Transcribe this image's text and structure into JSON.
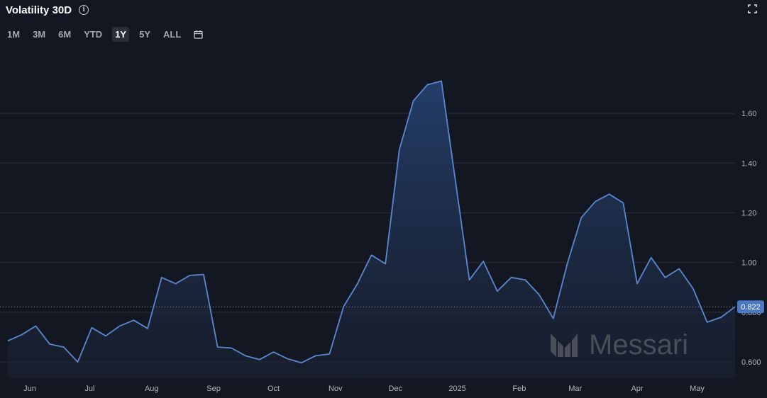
{
  "header": {
    "title": "Volatility 30D",
    "info_icon": "info-icon",
    "fullscreen_icon": "fullscreen-icon"
  },
  "range_buttons": {
    "items": [
      "1M",
      "3M",
      "6M",
      "YTD",
      "1Y",
      "5Y",
      "ALL"
    ],
    "active": "1Y",
    "calendar_icon": "calendar-icon"
  },
  "watermark": {
    "text": "Messari",
    "icon": "messari-logo-icon"
  },
  "colors": {
    "background": "#131722",
    "line": "#5b87d0",
    "fill_top": "#24406e",
    "grid": "#2a2e39",
    "last_value_badge": "#4a78c2"
  },
  "chart_data": {
    "type": "area",
    "ylim": [
      0.535,
      1.885
    ],
    "y_ticks": [
      0.6,
      0.8,
      1.0,
      1.2,
      1.4,
      1.6
    ],
    "y_tick_labels": [
      "0.600",
      "0.800",
      "1.00",
      "1.20",
      "1.40",
      "1.60"
    ],
    "x_tick_labels": [
      "Jun",
      "Jul",
      "Aug",
      "Sep",
      "Oct",
      "Nov",
      "Dec",
      "2025",
      "Feb",
      "Mar",
      "Apr",
      "May"
    ],
    "x_ticks": [
      "2024-06-01",
      "2024-07-01",
      "2024-08-01",
      "2024-09-01",
      "2024-10-01",
      "2024-11-01",
      "2024-12-01",
      "2025-01-01",
      "2025-02-01",
      "2025-03-01",
      "2025-04-01",
      "2025-05-01"
    ],
    "last_value": 0.822,
    "last_value_label": "0.822",
    "series": [
      {
        "values": [
          [
            "2024-05-21",
            0.685
          ],
          [
            "2024-05-28",
            0.71
          ],
          [
            "2024-06-04",
            0.745
          ],
          [
            "2024-06-11",
            0.672
          ],
          [
            "2024-06-18",
            0.66
          ],
          [
            "2024-06-25",
            0.6
          ],
          [
            "2024-07-02",
            0.738
          ],
          [
            "2024-07-09",
            0.705
          ],
          [
            "2024-07-16",
            0.745
          ],
          [
            "2024-07-23",
            0.768
          ],
          [
            "2024-07-30",
            0.735
          ],
          [
            "2024-08-06",
            0.94
          ],
          [
            "2024-08-13",
            0.915
          ],
          [
            "2024-08-20",
            0.948
          ],
          [
            "2024-08-27",
            0.952
          ],
          [
            "2024-09-03",
            0.66
          ],
          [
            "2024-09-10",
            0.656
          ],
          [
            "2024-09-17",
            0.625
          ],
          [
            "2024-09-24",
            0.61
          ],
          [
            "2024-10-01",
            0.64
          ],
          [
            "2024-10-08",
            0.613
          ],
          [
            "2024-10-15",
            0.597
          ],
          [
            "2024-10-22",
            0.625
          ],
          [
            "2024-10-29",
            0.632
          ],
          [
            "2024-11-05",
            0.822
          ],
          [
            "2024-11-12",
            0.915
          ],
          [
            "2024-11-19",
            1.03
          ],
          [
            "2024-11-26",
            0.995
          ],
          [
            "2024-12-03",
            1.455
          ],
          [
            "2024-12-10",
            1.65
          ],
          [
            "2024-12-17",
            1.715
          ],
          [
            "2024-12-24",
            1.73
          ],
          [
            "2024-12-31",
            1.33
          ],
          [
            "2025-01-07",
            0.93
          ],
          [
            "2025-01-14",
            1.005
          ],
          [
            "2025-01-21",
            0.885
          ],
          [
            "2025-01-28",
            0.94
          ],
          [
            "2025-02-04",
            0.93
          ],
          [
            "2025-02-11",
            0.87
          ],
          [
            "2025-02-18",
            0.775
          ],
          [
            "2025-02-25",
            0.995
          ],
          [
            "2025-03-04",
            1.18
          ],
          [
            "2025-03-11",
            1.245
          ],
          [
            "2025-03-18",
            1.275
          ],
          [
            "2025-03-25",
            1.24
          ],
          [
            "2025-04-01",
            0.915
          ],
          [
            "2025-04-08",
            1.02
          ],
          [
            "2025-04-15",
            0.94
          ],
          [
            "2025-04-22",
            0.975
          ],
          [
            "2025-04-29",
            0.895
          ],
          [
            "2025-05-06",
            0.76
          ],
          [
            "2025-05-13",
            0.78
          ],
          [
            "2025-05-20",
            0.822
          ]
        ]
      }
    ],
    "grid": true
  }
}
